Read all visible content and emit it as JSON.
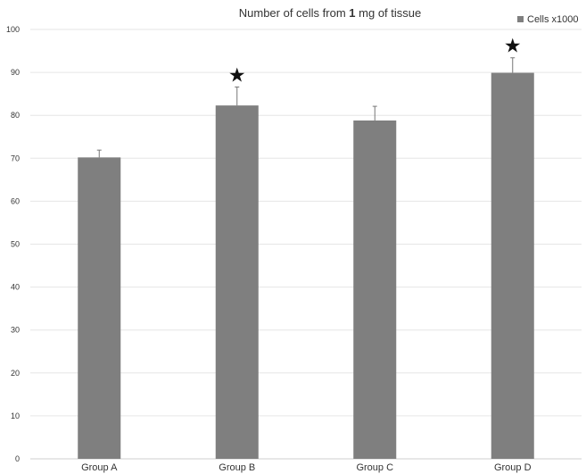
{
  "chart_data": {
    "type": "bar",
    "title": {
      "prefix": "Number of cells from ",
      "bold": "1",
      "suffix": " mg of tissue"
    },
    "categories": [
      "Group A",
      "Group B",
      "Group C",
      "Group D"
    ],
    "series": [
      {
        "name": "Cells x1000",
        "values": [
          70.2,
          82.3,
          78.8,
          89.9
        ],
        "error": [
          1.7,
          4.3,
          3.3,
          3.5
        ],
        "color": "#7f7f7f"
      }
    ],
    "significance": [
      "",
      "★",
      "",
      "★"
    ],
    "ylim": [
      0,
      100
    ],
    "yticks": [
      0,
      10,
      20,
      30,
      40,
      50,
      60,
      70,
      80,
      90,
      100
    ],
    "grid": true,
    "legend_position": "top-right",
    "xlabel": "",
    "ylabel": ""
  }
}
